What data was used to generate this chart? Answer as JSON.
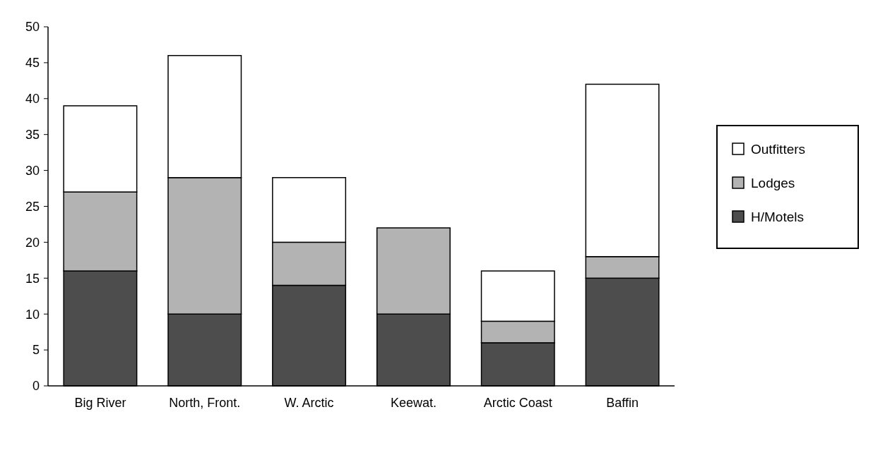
{
  "chart_data": {
    "type": "bar",
    "stacked": true,
    "categories": [
      "Big River",
      "North, Front.",
      "W. Arctic",
      "Keewat.",
      "Arctic Coast",
      "Baffin"
    ],
    "series": [
      {
        "name": "H/Motels",
        "color": "#4d4d4d",
        "values": [
          16,
          10,
          14,
          10,
          6,
          15
        ]
      },
      {
        "name": "Lodges",
        "color": "#b3b3b3",
        "values": [
          11,
          19,
          6,
          12,
          3,
          3
        ]
      },
      {
        "name": "Outfitters",
        "color": "#ffffff",
        "values": [
          12,
          17,
          9,
          null,
          7,
          24
        ]
      }
    ],
    "ylim": [
      0,
      50
    ],
    "yticks": [
      0,
      5,
      10,
      15,
      20,
      25,
      30,
      35,
      40,
      45,
      50
    ],
    "grid": false,
    "legend": "right"
  }
}
